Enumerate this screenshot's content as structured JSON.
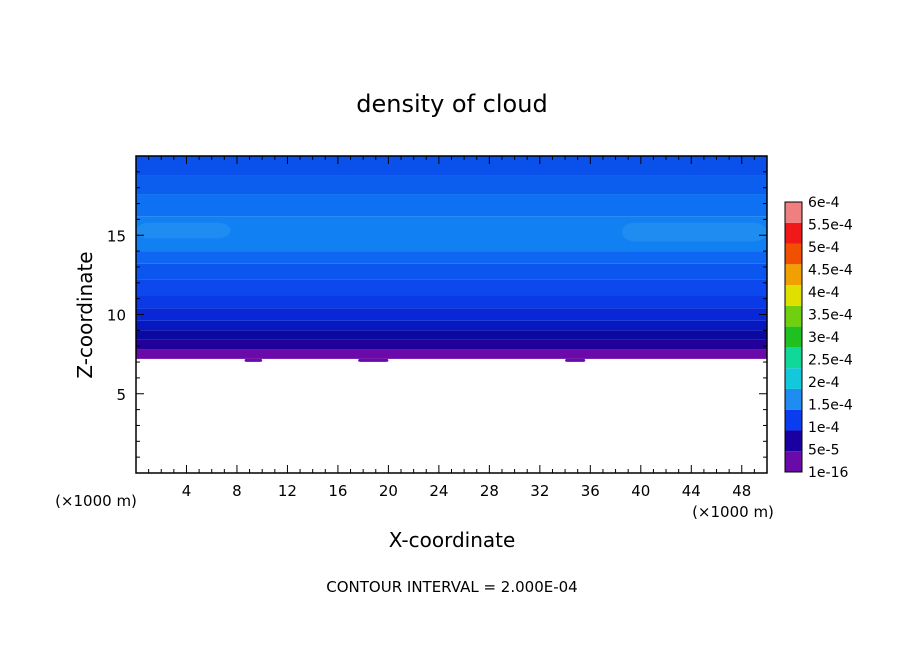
{
  "chart_data": {
    "type": "heatmap",
    "title": "density of cloud",
    "xlabel": "X-coordinate",
    "ylabel": "Z-coordinate",
    "x_unit_label": "(×1000 m)",
    "z_unit_label": "(×1000 m)",
    "xlim": [
      0,
      50
    ],
    "ylim": [
      0,
      20
    ],
    "x_ticks": [
      4,
      8,
      12,
      16,
      20,
      24,
      28,
      32,
      36,
      40,
      44,
      48
    ],
    "y_ticks": [
      5,
      10,
      15
    ],
    "x_tick_labels": [
      "4",
      "8",
      "12",
      "16",
      "20",
      "24",
      "28",
      "32",
      "36",
      "40",
      "44",
      "48"
    ],
    "y_tick_labels": [
      "5",
      "10",
      "15"
    ],
    "colorbar": {
      "labels": [
        "1e-16",
        "5e-5",
        "1e-4",
        "1.5e-4",
        "2e-4",
        "2.5e-4",
        "3e-4",
        "3.5e-4",
        "4e-4",
        "4.5e-4",
        "5e-4",
        "5.5e-4",
        "6e-4"
      ],
      "colors": [
        "#6a0aa8",
        "#1a00a0",
        "#0a3cf0",
        "#1e8cf0",
        "#14c8dc",
        "#10d898",
        "#20c020",
        "#70d010",
        "#e0e000",
        "#f0a000",
        "#f05000",
        "#f01818",
        "#f08080"
      ]
    },
    "cloud_base_z": 7.2,
    "field_bands": [
      {
        "z": [
          7.2,
          7.8
        ],
        "color": "#6a0aa8"
      },
      {
        "z": [
          7.8,
          8.4
        ],
        "color": "#22009a"
      },
      {
        "z": [
          8.4,
          9.0
        ],
        "color": "#0a0aa0"
      },
      {
        "z": [
          9.0,
          9.6
        ],
        "color": "#0818c0"
      },
      {
        "z": [
          9.6,
          10.4
        ],
        "color": "#0828d8"
      },
      {
        "z": [
          10.4,
          11.2
        ],
        "color": "#0a3ae6"
      },
      {
        "z": [
          11.2,
          12.2
        ],
        "color": "#0c48ee"
      },
      {
        "z": [
          12.2,
          13.2
        ],
        "color": "#0c56f0"
      },
      {
        "z": [
          13.2,
          14.0
        ],
        "color": "#0e66f2"
      },
      {
        "z": [
          14.0,
          16.2
        ],
        "color": "#1080f2"
      },
      {
        "z": [
          16.2,
          17.6
        ],
        "color": "#0e70f2"
      },
      {
        "z": [
          17.6,
          18.8
        ],
        "color": "#0c5eee"
      },
      {
        "z": [
          18.8,
          20.0
        ],
        "color": "#0a50ea"
      }
    ],
    "light_patches": [
      {
        "x": [
          0,
          7.5
        ],
        "z": [
          14.8,
          15.8
        ],
        "color": "#1e8cf0"
      },
      {
        "x": [
          38.5,
          50
        ],
        "z": [
          14.6,
          15.8
        ],
        "color": "#1e8cf0"
      }
    ],
    "base_bumps_x": [
      [
        8.6,
        10.0
      ],
      [
        17.6,
        20.0
      ],
      [
        34.0,
        35.6
      ]
    ],
    "annotation": "CONTOUR INTERVAL = 2.000E-04"
  }
}
